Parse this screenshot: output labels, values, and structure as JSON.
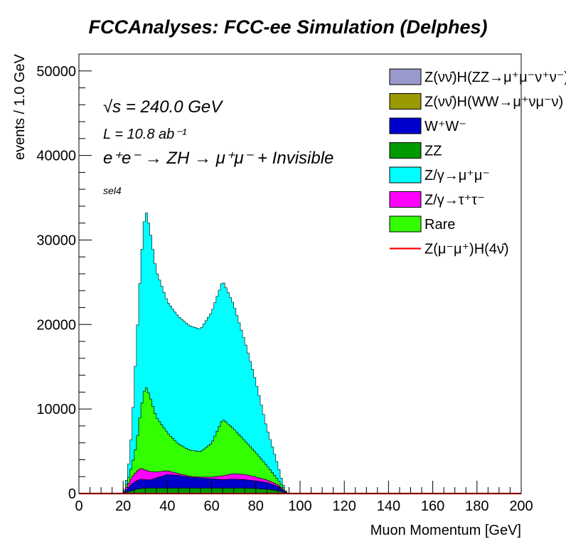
{
  "chart_data": {
    "type": "stacked-histogram",
    "title": "FCCAnalyses: FCC-ee Simulation (Delphes)",
    "xlabel": "Muon Momentum [GeV]",
    "ylabel": "events / 1.0 GeV",
    "xlim": [
      0,
      200
    ],
    "ylim": [
      0,
      52000
    ],
    "x_ticks": [
      0,
      20,
      40,
      60,
      80,
      100,
      120,
      140,
      160,
      180,
      200
    ],
    "y_ticks": [
      0,
      10000,
      20000,
      30000,
      40000,
      50000
    ],
    "bin_width": 1.0,
    "grid": false,
    "legend_position": "top-right",
    "annotations": {
      "sqrt_s": "√s = 240.0 GeV",
      "lumi": "L = 10.8 ab⁻¹",
      "process": "e⁺e⁻ → ZH → μ⁺μ⁻ + Invisible",
      "selection": "sel4"
    },
    "series": [
      {
        "name": "Z(νν̄)H(ZZ→μ⁺μ⁻ν⁺ν⁻)",
        "color": "#9999cc",
        "x": [
          20,
          94
        ],
        "values": [
          0,
          0
        ]
      },
      {
        "name": "Z(νν̄)H(WW→μ⁺νμ⁻ν)",
        "color": "#999900",
        "x": [
          20,
          94
        ],
        "values": [
          0,
          0
        ]
      },
      {
        "name": "ZZ",
        "color": "#009900",
        "x": [
          20,
          22,
          24,
          26,
          28,
          30,
          35,
          40,
          45,
          50,
          55,
          60,
          65,
          70,
          75,
          80,
          85,
          90,
          92,
          94
        ],
        "values": [
          0,
          200,
          350,
          500,
          600,
          650,
          650,
          650,
          650,
          650,
          650,
          650,
          650,
          650,
          650,
          600,
          500,
          350,
          200,
          0
        ]
      },
      {
        "name": "W⁺W⁻",
        "color": "#0000cc",
        "x": [
          20,
          22,
          24,
          26,
          28,
          30,
          32,
          35,
          40,
          45,
          50,
          55,
          60,
          65,
          70,
          75,
          80,
          85,
          90,
          92,
          94
        ],
        "values": [
          0,
          400,
          800,
          1000,
          1100,
          1000,
          950,
          1200,
          1600,
          1500,
          1300,
          1200,
          1100,
          1000,
          1050,
          1000,
          900,
          800,
          500,
          300,
          0
        ]
      },
      {
        "name": "Z/γ→τ⁺τ⁻",
        "color": "#ff00ff",
        "x": [
          20,
          22,
          24,
          26,
          28,
          30,
          32,
          35,
          40,
          45,
          50,
          55,
          60,
          65,
          70,
          75,
          80,
          85,
          90,
          92,
          94
        ],
        "values": [
          0,
          400,
          800,
          1100,
          1300,
          1150,
          1000,
          700,
          450,
          200,
          100,
          100,
          200,
          450,
          650,
          600,
          450,
          300,
          200,
          100,
          0
        ]
      },
      {
        "name": "Rare",
        "color": "#33ff00",
        "x": [
          20,
          22,
          24,
          26,
          28,
          30,
          32,
          35,
          40,
          45,
          50,
          55,
          60,
          65,
          70,
          75,
          80,
          85,
          90,
          92,
          94
        ],
        "values": [
          0,
          400,
          1400,
          3200,
          7000,
          10000,
          9000,
          6500,
          4500,
          3500,
          3100,
          3000,
          4000,
          6700,
          5300,
          4000,
          2900,
          1700,
          600,
          300,
          0
        ]
      },
      {
        "name": "Z/γ→μ⁺μ⁻",
        "color": "#00ffff",
        "x": [
          20,
          22,
          24,
          26,
          28,
          30,
          32,
          35,
          40,
          45,
          50,
          55,
          60,
          65,
          70,
          75,
          80,
          85,
          90,
          92,
          94
        ],
        "values": [
          0,
          700,
          4400,
          11700,
          17300,
          21000,
          19800,
          17300,
          15500,
          15100,
          14700,
          14500,
          15500,
          16400,
          14700,
          11800,
          8400,
          4400,
          1700,
          400,
          0
        ]
      },
      {
        "name": "Z(μ⁻μ⁺)H(4ν̄)",
        "color": "#ff0000",
        "style": "line",
        "x": [
          0,
          200
        ],
        "values": [
          0,
          0
        ]
      }
    ]
  }
}
